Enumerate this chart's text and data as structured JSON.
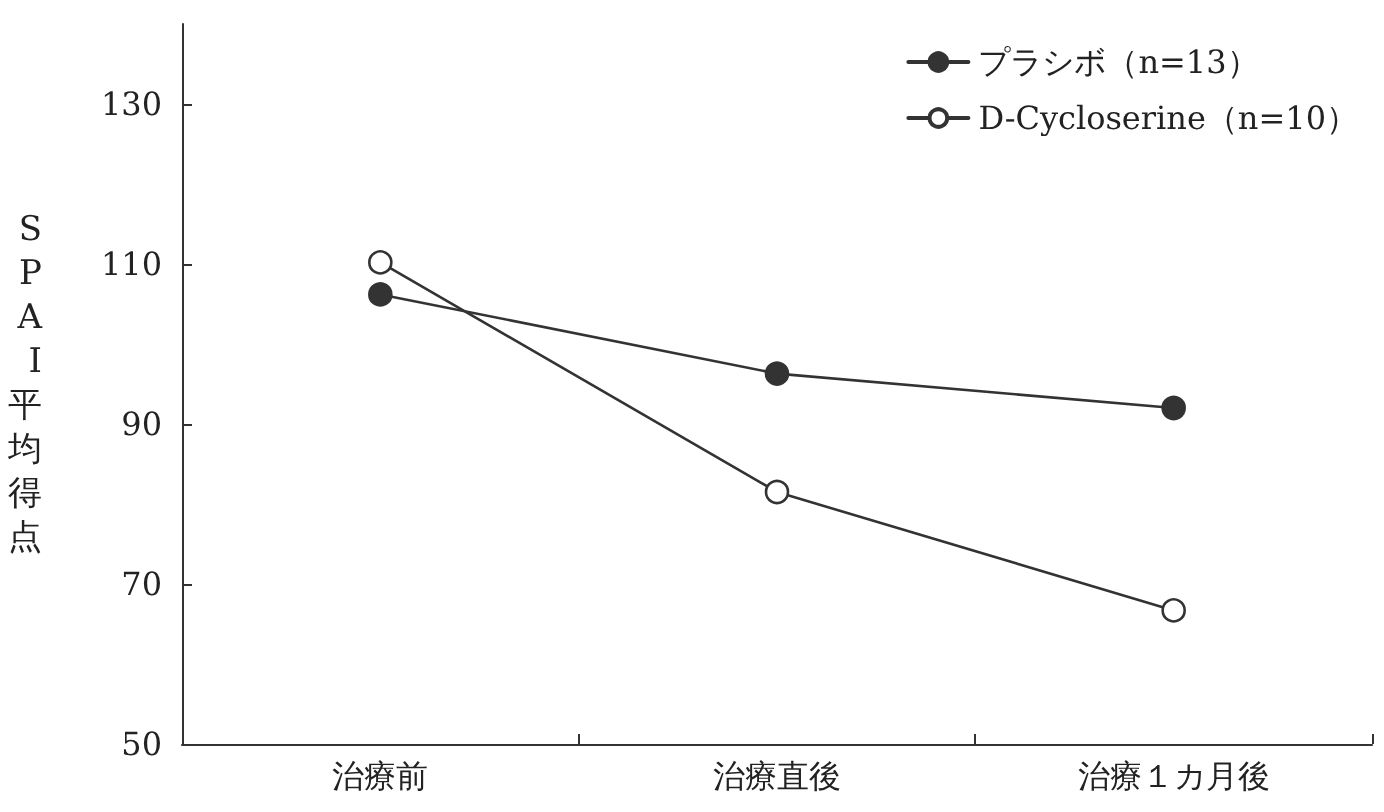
{
  "chart_data": {
    "type": "line",
    "ylabel": "SPAI平均得点",
    "categories": [
      "治療前",
      "治療直後",
      "治療１カ月後"
    ],
    "series": [
      {
        "name": "プラシボ（n=13）",
        "color": "#333333",
        "values": [
          106.2,
          96.3,
          92
        ]
      },
      {
        "name": "D-Cycloserine（n=10）",
        "color": "#333333",
        "values": [
          110.2,
          81.5,
          66.7
        ]
      }
    ],
    "ylim": [
      50,
      140
    ],
    "yticks": [
      50,
      70,
      90,
      110,
      130
    ],
    "grid": false,
    "legend": "top right",
    "marker": "circle",
    "line_style": "solid"
  }
}
